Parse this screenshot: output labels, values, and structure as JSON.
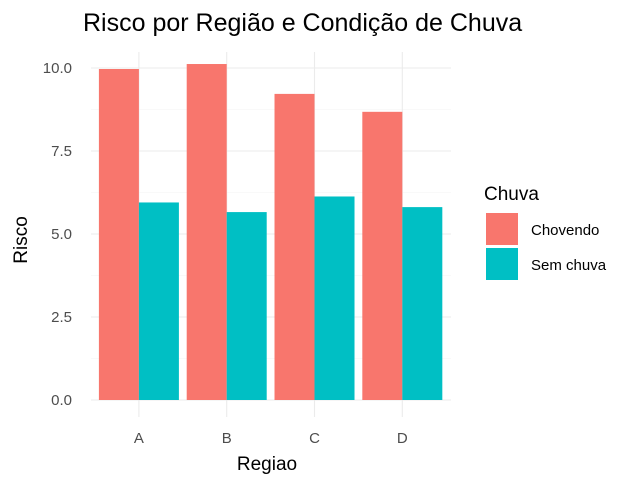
{
  "chart_data": {
    "type": "bar",
    "title": "Risco por Região e Condição de Chuva",
    "xlabel": "Regiao",
    "ylabel": "Risco",
    "categories": [
      "A",
      "B",
      "C",
      "D"
    ],
    "series": [
      {
        "name": "Chovendo",
        "color": "#F8766D",
        "values": [
          9.97,
          10.12,
          9.22,
          8.68
        ]
      },
      {
        "name": "Sem chuva",
        "color": "#00BFC4",
        "values": [
          5.95,
          5.66,
          6.13,
          5.81
        ]
      }
    ],
    "ylim": [
      0,
      10.5
    ],
    "yticks": [
      0,
      2.5,
      5,
      7.5,
      10
    ],
    "ytick_labels": [
      "0.0",
      "2.5",
      "5.0",
      "7.5",
      "10.0"
    ],
    "legend": {
      "title": "Chuva",
      "position": "right"
    },
    "grid": true
  }
}
